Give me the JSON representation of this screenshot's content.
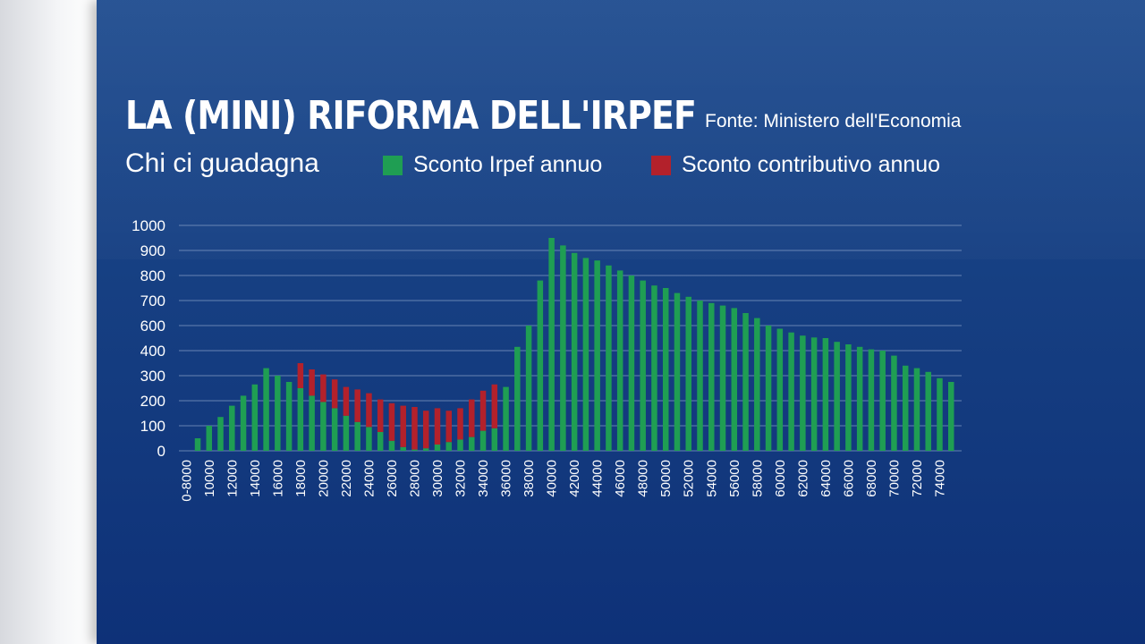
{
  "header": {
    "title": "LA (MINI) RIFORMA DELL'IRPEF",
    "source": "Fonte: Ministero dell'Economia",
    "subtitle": "Chi ci guadagna"
  },
  "legend": {
    "irpef": "Sconto Irpef annuo",
    "contributivo": "Sconto contributivo annuo"
  },
  "colors": {
    "background": "#163f82",
    "irpef": "#1f9e53",
    "contributivo": "#b3212b",
    "text": "#ffffff",
    "grid": "#8aa3c9"
  },
  "chart_data": {
    "type": "bar",
    "stacked": true,
    "y_ticks": [
      0,
      100,
      200,
      300,
      400,
      600,
      700,
      800,
      900,
      1000
    ],
    "x_tick_labels": [
      "0-8000",
      "10000",
      "12000",
      "14000",
      "16000",
      "18000",
      "20000",
      "22000",
      "24000",
      "26000",
      "28000",
      "30000",
      "32000",
      "34000",
      "36000",
      "38000",
      "40000",
      "42000",
      "44000",
      "46000",
      "48000",
      "50000",
      "52000",
      "54000",
      "56000",
      "58000",
      "60000",
      "62000",
      "64000",
      "66000",
      "68000",
      "70000",
      "72000",
      "74000"
    ],
    "grid": true,
    "legend_position": "top",
    "series": [
      {
        "name": "Sconto Irpef annuo",
        "values": [
          0,
          50,
          100,
          135,
          180,
          220,
          265,
          330,
          300,
          275,
          250,
          220,
          195,
          170,
          140,
          115,
          95,
          75,
          40,
          15,
          5,
          10,
          25,
          35,
          45,
          55,
          80,
          90,
          255,
          430,
          600,
          780,
          950,
          920,
          890,
          870,
          860,
          840,
          820,
          800,
          780,
          760,
          750,
          730,
          715,
          700,
          690,
          680,
          670,
          650,
          630,
          600,
          575,
          545,
          520,
          505,
          500,
          470,
          450,
          430,
          410,
          400,
          380,
          340,
          330,
          315,
          290,
          275
        ],
        "color": "#1f9e53"
      },
      {
        "name": "Sconto contributivo annuo",
        "values": [
          0,
          0,
          0,
          0,
          0,
          0,
          0,
          0,
          0,
          0,
          100,
          105,
          110,
          115,
          115,
          130,
          135,
          130,
          150,
          165,
          170,
          150,
          145,
          125,
          125,
          150,
          160,
          175,
          0,
          0,
          0,
          0,
          0,
          0,
          0,
          0,
          0,
          0,
          0,
          0,
          0,
          0,
          0,
          0,
          0,
          0,
          0,
          0,
          0,
          0,
          0,
          0,
          0,
          0,
          0,
          0,
          0,
          0,
          0,
          0,
          0,
          0,
          0,
          0,
          0,
          0,
          0,
          0
        ],
        "color": "#b3212b"
      }
    ]
  }
}
